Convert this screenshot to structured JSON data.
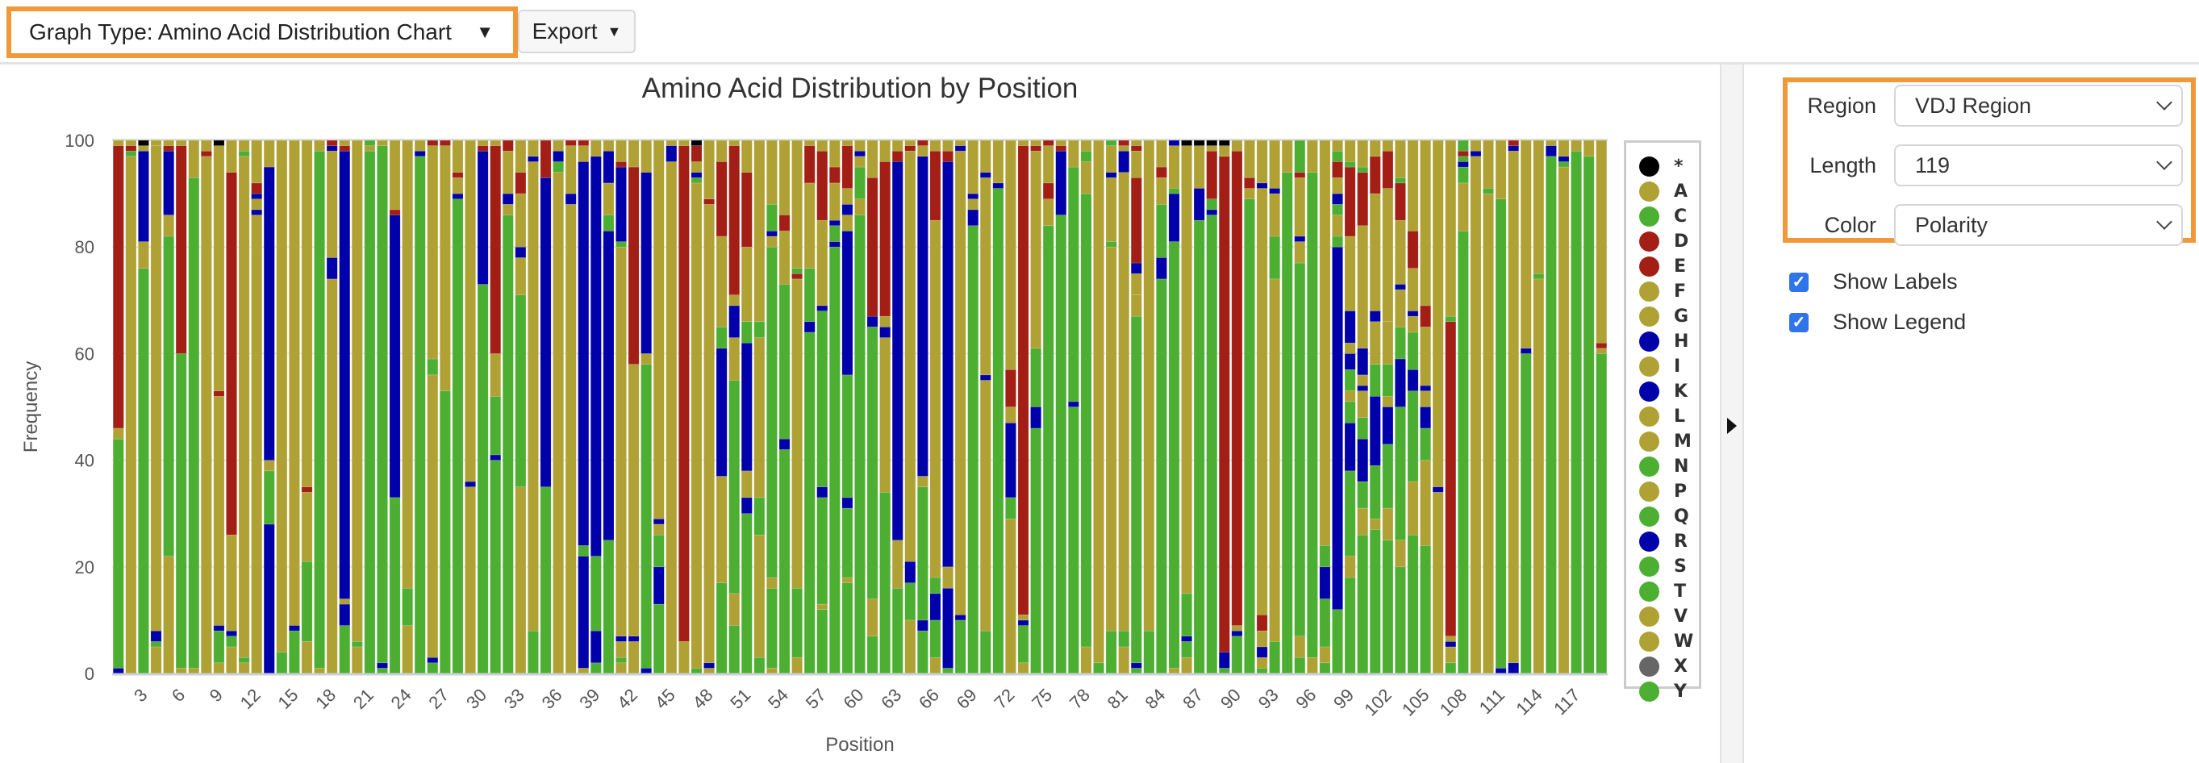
{
  "toolbar": {
    "graph_type_label": "Graph Type: Amino Acid Distribution Chart",
    "export_label": "Export",
    "caret": "▼"
  },
  "options": {
    "region_label": "Region",
    "region_value": "VDJ Region",
    "length_label": "Length",
    "length_value": "119",
    "color_label": "Color",
    "color_value": "Polarity",
    "show_labels": "Show Labels",
    "show_labels_checked": true,
    "show_legend": "Show Legend",
    "show_legend_checked": true,
    "check_glyph": "✓"
  },
  "chart_data": {
    "type": "bar",
    "stacked": true,
    "title": "Amino Acid Distribution by Position",
    "xlabel": "Position",
    "ylabel": "Frequency",
    "ylim": [
      0,
      100
    ],
    "y_ticks": [
      "0",
      "20",
      "40",
      "60",
      "80",
      "100"
    ],
    "x_ticks": [
      "3",
      "6",
      "9",
      "12",
      "15",
      "18",
      "21",
      "24",
      "27",
      "30",
      "33",
      "36",
      "39",
      "42",
      "45",
      "48",
      "51",
      "54",
      "57",
      "60",
      "63",
      "66",
      "69",
      "72",
      "75",
      "78",
      "81",
      "84",
      "87",
      "90",
      "93",
      "96",
      "99",
      "102",
      "105",
      "108",
      "111",
      "114",
      "117"
    ],
    "grid": true,
    "legend_position": "right",
    "legend": [
      {
        "label": "*",
        "color": "#000000"
      },
      {
        "label": "A",
        "color": "#b0a134"
      },
      {
        "label": "C",
        "color": "#4caf32"
      },
      {
        "label": "D",
        "color": "#a31f16"
      },
      {
        "label": "E",
        "color": "#a31f16"
      },
      {
        "label": "F",
        "color": "#b0a134"
      },
      {
        "label": "G",
        "color": "#b0a134"
      },
      {
        "label": "H",
        "color": "#0000aa"
      },
      {
        "label": "I",
        "color": "#b0a134"
      },
      {
        "label": "K",
        "color": "#0000aa"
      },
      {
        "label": "L",
        "color": "#b0a134"
      },
      {
        "label": "M",
        "color": "#b0a134"
      },
      {
        "label": "N",
        "color": "#4caf32"
      },
      {
        "label": "P",
        "color": "#b0a134"
      },
      {
        "label": "Q",
        "color": "#4caf32"
      },
      {
        "label": "R",
        "color": "#0000aa"
      },
      {
        "label": "S",
        "color": "#4caf32"
      },
      {
        "label": "T",
        "color": "#4caf32"
      },
      {
        "label": "V",
        "color": "#b0a134"
      },
      {
        "label": "W",
        "color": "#b0a134"
      },
      {
        "label": "X",
        "color": "#666666"
      },
      {
        "label": "Y",
        "color": "#4caf32"
      }
    ],
    "segment_group_colors": {
      "o": "#b0a134",
      "g": "#4caf32",
      "r": "#a31f16",
      "b": "#0000aa",
      "k": "#000000"
    },
    "positions_note_format": "bottom-to-top polarity-group segments, percent",
    "positions": [
      "b1 g43 o2 r53 o1",
      "o97 g1 r1 o1",
      "g76 o5 b17 o1 k1",
      "o5 g1 b2 o91 o1",
      "o22 g60 o4 b12 r1 o1",
      "o1 g59 r39 o1",
      "o1 g92 o7",
      "o97 r1 o2",
      "o2 g6 b1 o43 r1 o46 k1",
      "o5 g2 b1 o18 r68 o6",
      "o2 g1 o94 g1 o2",
      "o86 b1 o2 b1 r2 o8",
      "b28 g10 o2 b55 o5",
      "g4 o96",
      "g8 b1 o91",
      "o6 g15 o13 r1 o65",
      "o1 g97 o2",
      "o74 b4 o20 b1 r1",
      "g9 b4 o1 b84 r1 o1",
      "o5 g1 o94",
      "g98 o1 g1",
      "g1 b1 g97 o1",
      "g33 b53 r1 o13",
      "o9 g7 o84",
      "g97 b1 o2",
      "g2 b1 o53 g3 o40 r1",
      "g53 o46 r1",
      "g89 b1 o3 r1 o6",
      "o35 b1 o64",
      "g73 b25 r1 o1",
      "g40 b1 g11 o8 r39 o1",
      "g86 o2 b2 o8 r2",
      "o35 g36 o7 b2 o10 r4 o6",
      "g8 o88 b1 o3",
      "g35 b58 r7",
      "o94 g2 b2 o2",
      "o88 b2 o9 r1",
      "o1 b21 g2 b72 o3 r1",
      "g2 b6 g14 b75 o3",
      "g25 b58 g3 o6 b6 o2",
      "o2 g1 o3 b1 o73 g1 b14 r1 o4",
      "o6 b1 o51 r37 o5",
      "b1 g57 o2 b34 o6",
      "g13 b7 g6 o2 b1 o71",
      "o96 b3 o1",
      "o6 r93 o1",
      "g1 o91 g1 b1 o2 r3 k1",
      "o1 b1 o86 r1 o11",
      "g17 o20 b24 g4 o17 r14 o4",
      "g9 o6 g40 o8 b6 o2 r28 o1",
      "g30 b3 o5 b24 g4 o14 r14 o6",
      "g3 o23 g7 o30 g3 o34",
      "o1 g15 o2 g62 o2 b1 g5 o12",
      "g42 b2 g29 o10 r3 o14",
      "o3 g13 o58 r1 g1 o24",
      "g64 b2 g10 o16 r7 o1",
      "g12 o1 g20 b2 g33 b1 o16 r13 o2",
      "g80 b1 g3 b1 o7 r3 o5",
      "g17 o1 g13 b2 g23 b27 o3 b2 o3 r8 o1",
      "g86 o3 g6 o2 b1 o2",
      "g7 o7 g51 b2 r26 o7",
      "g34 o29 b2 o2 r29 o4",
      "g16 o9 b71 r2 o2",
      "o10 g7 b4 o77 r1 o1",
      "g8 b2 g25 o2 b60 o2 r1",
      "o3 g7 b5 g3 o67 r13 o2",
      "g1 b15 o4 b76 r2 o2",
      "g10 b1 o87 b1 o1",
      "g84 b3 o2 b1 o10",
      "g8 o47 b1 o37 b1 o6",
      "g91 b1 o8",
      "o29 g4 b14 o3 r7 o43",
      "o2 g7 b1 o1 r88 o1",
      "g46 b4 g11 o37 r1 o1",
      "g84 o5 r3 o7 r1",
      "g86 b12 r1 o1",
      "g50 b1 g44 o5",
      "o5 g85 o6 g2 o2",
      "g2 o98",
      "g8 o72 g1 o12 b1 o5 g1",
      "o5 g3 o86 b4 o1 r1",
      "g1 b1 g65 o4 o4 b2 r16 o5 r1 o1",
      "g8 o92",
      "g74 b4 g10 o5 r2 o5",
      "o1 g80 b9 g1 o8 b1",
      "o3 g3 b1 g8 o84 k1",
      "g85 b6 o8 k1",
      "g86 b1 g2 r9 o1 k1",
      "g1 b3 r93 o2 k1",
      "g7 b1 o1 r89 o2",
      "g89 o2 r2 o7",
      "g1 o2 b2 o3 r3 o80 b1 o8",
      "g6 o68 g8 o8 b1 o9",
      "g94 o6",
      "g3 o4 g70 o4 b1 o11 r1 g6",
      "o3 g91 o6",
      "g2 o3 g9 b6 g4 o76",
      "g12 b68 g2 o4 g2 b2 o3 r3 g2 o2",
      "g18 o4 g16 b9 g4 o2 g4 b3 o2 b6 o14 r13 g1 o4",
      "g26 o5 g5 b8 g4 o5 b1 o2 b5 o23 r10 g1 o5",
      "g27 o2 g10 b13 g6 o8 b2 o22 r7 o3",
      "g25 o6 g12 b7 o2 g6 o8 o25 r7 o2",
      "g20 o5 g25 b9 g6 o7 b1 o12 r7 g1 o7",
      "g26 o10 g17 b4 g7 o3 b1 o8 r7 o17",
      "g24 o16 g6 b4 o3 b1 o11 r4 o31",
      "o34 b1 o65",
      "g2 o3 b1 o1 r59 g1 o33",
      "g83 o9 g3 b1 g1 r1 g2",
      "o97 b1 o2",
      "o90 g1 o9",
      "b1 g88 o11",
      "b2 o96 b1 r1",
      "g60 b1 o39",
      "o74 g1 o25",
      "g97 b2 o1",
      "o95 g1 b1 o3",
      "g98 o2",
      "g97 o3",
      "g60 o1 r1 o38"
    ]
  }
}
